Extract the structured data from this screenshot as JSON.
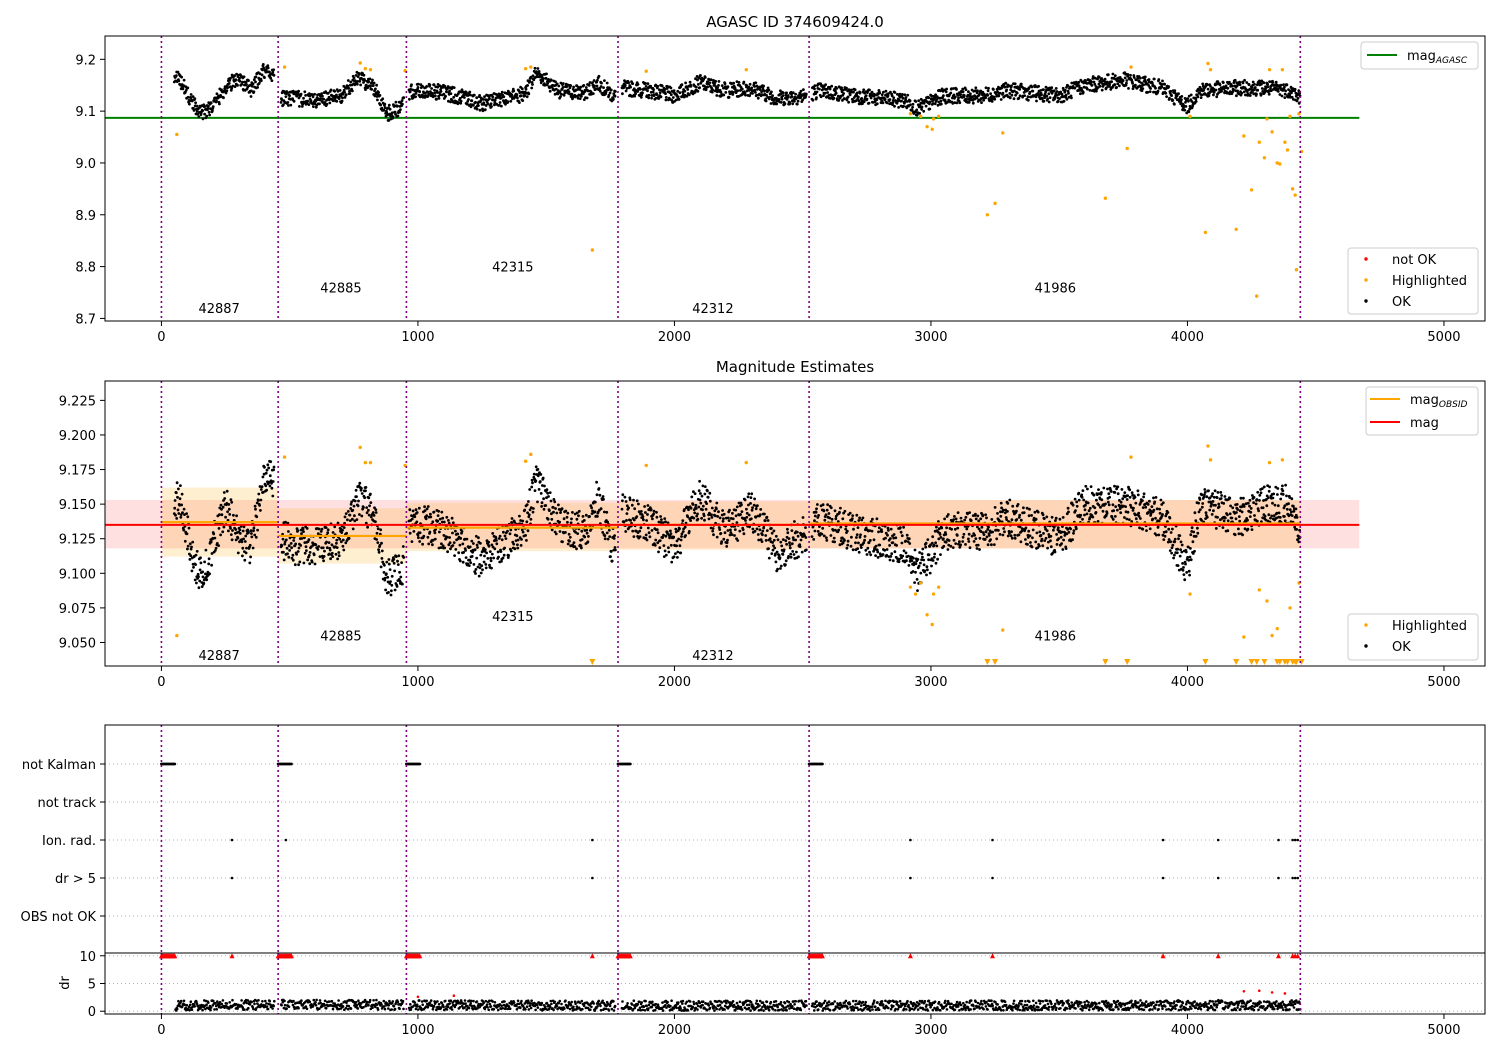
{
  "chart_data": [
    {
      "type": "scatter",
      "title": "AGASC ID 374609424.0",
      "xlim": [
        -220,
        5160
      ],
      "ylim": [
        8.695,
        9.245
      ],
      "xticks": [
        0,
        1000,
        2000,
        3000,
        4000,
        5000
      ],
      "xtick_labels": [
        "0",
        "1000",
        "2000",
        "3000",
        "4000",
        "5000"
      ],
      "yticks": [
        8.7,
        8.8,
        8.9,
        9.0,
        9.1,
        9.2
      ],
      "ytick_labels": [
        "8.7",
        "8.8",
        "8.9",
        "9.0",
        "9.1",
        "9.2"
      ],
      "obsid_boundaries": [
        0,
        455,
        955,
        1780,
        2525,
        4440
      ],
      "obsid_labels": [
        {
          "text": "42887",
          "x": 225,
          "y": 8.72
        },
        {
          "text": "42885",
          "x": 700,
          "y": 8.76
        },
        {
          "text": "42315",
          "x": 1370,
          "y": 8.8
        },
        {
          "text": "42312",
          "x": 2150,
          "y": 8.72
        },
        {
          "text": "41986",
          "x": 3485,
          "y": 8.76
        }
      ],
      "reference_lines": [
        {
          "name": "mag_AGASC",
          "y": 9.087,
          "x": [
            -220,
            4670
          ],
          "color": "#008000"
        }
      ],
      "legend_upper": {
        "position": "upper right",
        "entries": [
          {
            "label": "mag",
            "sub": "AGASC",
            "color": "#008000"
          }
        ]
      },
      "legend_lower": {
        "position": "lower right",
        "entries": [
          {
            "label": "not OK",
            "color": "#ff0000"
          },
          {
            "label": "Highlighted",
            "color": "#ffa500"
          },
          {
            "label": "OK",
            "color": "#000000"
          }
        ]
      },
      "ok_trend": [
        [
          50,
          9.17
        ],
        [
          80,
          9.155
        ],
        [
          120,
          9.115
        ],
        [
          160,
          9.098
        ],
        [
          200,
          9.11
        ],
        [
          250,
          9.145
        ],
        [
          300,
          9.165
        ],
        [
          350,
          9.14
        ],
        [
          400,
          9.18
        ],
        [
          440,
          9.17
        ],
        [
          460,
          9.125
        ],
        [
          520,
          9.125
        ],
        [
          600,
          9.12
        ],
        [
          700,
          9.13
        ],
        [
          770,
          9.165
        ],
        [
          830,
          9.145
        ],
        [
          880,
          9.095
        ],
        [
          940,
          9.11
        ],
        [
          960,
          9.135
        ],
        [
          1050,
          9.14
        ],
        [
          1150,
          9.13
        ],
        [
          1250,
          9.115
        ],
        [
          1350,
          9.125
        ],
        [
          1420,
          9.135
        ],
        [
          1460,
          9.175
        ],
        [
          1550,
          9.14
        ],
        [
          1650,
          9.135
        ],
        [
          1700,
          9.155
        ],
        [
          1775,
          9.125
        ],
        [
          1790,
          9.145
        ],
        [
          1900,
          9.14
        ],
        [
          2000,
          9.13
        ],
        [
          2100,
          9.155
        ],
        [
          2200,
          9.14
        ],
        [
          2300,
          9.145
        ],
        [
          2400,
          9.125
        ],
        [
          2520,
          9.13
        ],
        [
          2560,
          9.14
        ],
        [
          2700,
          9.13
        ],
        [
          2800,
          9.125
        ],
        [
          2900,
          9.12
        ],
        [
          2950,
          9.105
        ],
        [
          3050,
          9.13
        ],
        [
          3200,
          9.13
        ],
        [
          3300,
          9.14
        ],
        [
          3500,
          9.13
        ],
        [
          3600,
          9.15
        ],
        [
          3750,
          9.16
        ],
        [
          3900,
          9.145
        ],
        [
          4000,
          9.11
        ],
        [
          4050,
          9.14
        ],
        [
          4200,
          9.145
        ],
        [
          4300,
          9.145
        ],
        [
          4400,
          9.14
        ],
        [
          4440,
          9.125
        ]
      ],
      "highlighted_points": [
        [
          60,
          9.055
        ],
        [
          480,
          9.185
        ],
        [
          775,
          9.193
        ],
        [
          795,
          9.182
        ],
        [
          815,
          9.18
        ],
        [
          950,
          9.178
        ],
        [
          1420,
          9.182
        ],
        [
          1440,
          9.185
        ],
        [
          1680,
          8.832
        ],
        [
          1890,
          9.177
        ],
        [
          2280,
          9.18
        ],
        [
          2920,
          9.095
        ],
        [
          2960,
          9.09
        ],
        [
          2985,
          9.07
        ],
        [
          3005,
          9.065
        ],
        [
          3010,
          9.085
        ],
        [
          3030,
          9.09
        ],
        [
          3220,
          8.9
        ],
        [
          3250,
          8.922
        ],
        [
          3280,
          9.058
        ],
        [
          3680,
          8.932
        ],
        [
          3765,
          9.028
        ],
        [
          3780,
          9.185
        ],
        [
          4010,
          9.09
        ],
        [
          4070,
          8.866
        ],
        [
          4080,
          9.192
        ],
        [
          4090,
          9.18
        ],
        [
          4190,
          8.872
        ],
        [
          4220,
          9.052
        ],
        [
          4250,
          8.948
        ],
        [
          4270,
          8.743
        ],
        [
          4280,
          9.04
        ],
        [
          4300,
          9.01
        ],
        [
          4310,
          9.085
        ],
        [
          4320,
          9.18
        ],
        [
          4330,
          9.06
        ],
        [
          4350,
          9.0
        ],
        [
          4360,
          8.998
        ],
        [
          4370,
          9.18
        ],
        [
          4380,
          9.04
        ],
        [
          4390,
          9.025
        ],
        [
          4400,
          9.09
        ],
        [
          4410,
          8.95
        ],
        [
          4420,
          8.938
        ],
        [
          4425,
          8.794
        ],
        [
          4435,
          9.095
        ],
        [
          4445,
          9.022
        ]
      ],
      "not_ok_points": []
    },
    {
      "type": "scatter",
      "title": "Magnitude Estimates",
      "xlim": [
        -220,
        5160
      ],
      "ylim": [
        9.033,
        9.239
      ],
      "xticks": [
        0,
        1000,
        2000,
        3000,
        4000,
        5000
      ],
      "xtick_labels": [
        "0",
        "1000",
        "2000",
        "3000",
        "4000",
        "5000"
      ],
      "yticks": [
        9.05,
        9.075,
        9.1,
        9.125,
        9.15,
        9.175,
        9.2,
        9.225
      ],
      "ytick_labels": [
        "9.050",
        "9.075",
        "9.100",
        "9.125",
        "9.150",
        "9.175",
        "9.200",
        "9.225"
      ],
      "obsid_boundaries": [
        0,
        455,
        955,
        1780,
        2525,
        4440
      ],
      "obsid_labels": [
        {
          "text": "42887",
          "x": 225,
          "y": 9.041
        },
        {
          "text": "42885",
          "x": 700,
          "y": 9.055
        },
        {
          "text": "42315",
          "x": 1370,
          "y": 9.069
        },
        {
          "text": "42312",
          "x": 2150,
          "y": 9.041
        },
        {
          "text": "41986",
          "x": 3485,
          "y": 9.055
        }
      ],
      "mag": {
        "value": 9.135,
        "band": [
          9.118,
          9.153
        ],
        "x": [
          -100,
          4670
        ],
        "color": "#ff0000"
      },
      "mag_obsid": [
        {
          "x": [
            0,
            455
          ],
          "value": 9.137,
          "band": [
            9.112,
            9.162
          ]
        },
        {
          "x": [
            455,
            955
          ],
          "value": 9.127,
          "band": [
            9.107,
            9.147
          ]
        },
        {
          "x": [
            955,
            1780
          ],
          "value": 9.133,
          "band": [
            9.116,
            9.151
          ]
        },
        {
          "x": [
            1780,
            2525
          ],
          "value": 9.135,
          "band": [
            9.117,
            9.152
          ]
        },
        {
          "x": [
            2525,
            4440
          ],
          "value": 9.136,
          "band": [
            9.118,
            9.153
          ]
        }
      ],
      "legend_upper": {
        "position": "upper right",
        "entries": [
          {
            "label": "mag",
            "sub": "OBSID",
            "color": "#ffa500"
          },
          {
            "label": "mag",
            "sub": "",
            "color": "#ff0000"
          }
        ]
      },
      "legend_lower": {
        "position": "lower right",
        "entries": [
          {
            "label": "Highlighted",
            "color": "#ffa500"
          },
          {
            "label": "OK",
            "color": "#000000"
          }
        ]
      },
      "ok_trend": [
        [
          50,
          9.155
        ],
        [
          80,
          9.15
        ],
        [
          120,
          9.11
        ],
        [
          160,
          9.096
        ],
        [
          200,
          9.12
        ],
        [
          250,
          9.15
        ],
        [
          300,
          9.125
        ],
        [
          350,
          9.12
        ],
        [
          400,
          9.17
        ],
        [
          440,
          9.165
        ],
        [
          460,
          9.125
        ],
        [
          520,
          9.12
        ],
        [
          600,
          9.12
        ],
        [
          700,
          9.125
        ],
        [
          770,
          9.155
        ],
        [
          830,
          9.14
        ],
        [
          880,
          9.095
        ],
        [
          940,
          9.105
        ],
        [
          960,
          9.135
        ],
        [
          1050,
          9.135
        ],
        [
          1150,
          9.125
        ],
        [
          1250,
          9.11
        ],
        [
          1350,
          9.125
        ],
        [
          1420,
          9.135
        ],
        [
          1460,
          9.165
        ],
        [
          1550,
          9.135
        ],
        [
          1650,
          9.13
        ],
        [
          1700,
          9.155
        ],
        [
          1775,
          9.11
        ],
        [
          1790,
          9.145
        ],
        [
          1900,
          9.135
        ],
        [
          2000,
          9.12
        ],
        [
          2100,
          9.155
        ],
        [
          2200,
          9.13
        ],
        [
          2300,
          9.145
        ],
        [
          2400,
          9.115
        ],
        [
          2520,
          9.13
        ],
        [
          2560,
          9.14
        ],
        [
          2700,
          9.13
        ],
        [
          2800,
          9.125
        ],
        [
          2900,
          9.12
        ],
        [
          2950,
          9.1
        ],
        [
          3050,
          9.13
        ],
        [
          3200,
          9.13
        ],
        [
          3300,
          9.14
        ],
        [
          3500,
          9.125
        ],
        [
          3600,
          9.15
        ],
        [
          3750,
          9.15
        ],
        [
          3900,
          9.14
        ],
        [
          4000,
          9.105
        ],
        [
          4050,
          9.15
        ],
        [
          4200,
          9.14
        ],
        [
          4300,
          9.15
        ],
        [
          4400,
          9.15
        ],
        [
          4440,
          9.12
        ]
      ],
      "highlighted_points": [
        [
          60,
          9.055
        ],
        [
          480,
          9.184
        ],
        [
          775,
          9.191
        ],
        [
          795,
          9.18
        ],
        [
          815,
          9.18
        ],
        [
          950,
          9.178
        ],
        [
          1420,
          9.181
        ],
        [
          1440,
          9.186
        ],
        [
          1890,
          9.178
        ],
        [
          2280,
          9.18
        ],
        [
          2920,
          9.09
        ],
        [
          2940,
          9.085
        ],
        [
          2960,
          9.093
        ],
        [
          2985,
          9.07
        ],
        [
          3005,
          9.063
        ],
        [
          3010,
          9.085
        ],
        [
          3030,
          9.09
        ],
        [
          3280,
          9.059
        ],
        [
          3780,
          9.184
        ],
        [
          4010,
          9.085
        ],
        [
          4080,
          9.192
        ],
        [
          4090,
          9.182
        ],
        [
          4220,
          9.054
        ],
        [
          4280,
          9.088
        ],
        [
          4310,
          9.08
        ],
        [
          4320,
          9.18
        ],
        [
          4330,
          9.055
        ],
        [
          4350,
          9.06
        ],
        [
          4370,
          9.182
        ],
        [
          4400,
          9.075
        ],
        [
          4435,
          9.093
        ]
      ],
      "below_range_markers": [
        1680,
        3220,
        3250,
        3680,
        3765,
        4070,
        4190,
        4250,
        4270,
        4300,
        4350,
        4360,
        4380,
        4390,
        4410,
        4420,
        4425,
        4445
      ]
    },
    {
      "type": "scatter",
      "title": "",
      "xlim": [
        -220,
        5160
      ],
      "categories": [
        "not Kalman",
        "not track",
        "Ion. rad.",
        "dr > 5",
        "OBS not OK"
      ],
      "flag_points": {
        "not Kalman": [
          [
            0,
            55
          ],
          [
            455,
            510
          ],
          [
            955,
            1010
          ],
          [
            1780,
            1830
          ],
          [
            2525,
            2580
          ]
        ],
        "not track": [],
        "Ion. rad.": [
          275,
          485,
          1680,
          2920,
          3240,
          3905,
          4120,
          4355,
          4410,
          4420,
          4430
        ],
        "dr > 5": [
          275,
          1680,
          2920,
          3240,
          3905,
          4120,
          4355,
          4410,
          4420,
          4430
        ],
        "OBS not OK": []
      },
      "obsid_boundaries": [
        0,
        455,
        955,
        1780,
        2525,
        4440
      ]
    },
    {
      "type": "scatter",
      "title": "",
      "ylabel": "dr",
      "xlim": [
        -220,
        5160
      ],
      "ylim": [
        -0.5,
        10.5
      ],
      "xticks": [
        0,
        1000,
        2000,
        3000,
        4000,
        5000
      ],
      "xtick_labels": [
        "0",
        "1000",
        "2000",
        "3000",
        "4000",
        "5000"
      ],
      "yticks": [
        0,
        5,
        10
      ],
      "ytick_labels": [
        "0",
        "5",
        "10"
      ],
      "clipped_red_markers": [
        [
          0,
          55
        ],
        [
          455,
          510
        ],
        [
          955,
          1010
        ],
        [
          1780,
          1830
        ],
        [
          2525,
          2580
        ],
        275,
        1680,
        2920,
        3240,
        3905,
        4120,
        4355,
        4410,
        4420,
        4430
      ],
      "dr_trend": [
        [
          50,
          1.0
        ],
        [
          455,
          1.2
        ],
        [
          955,
          1.1
        ],
        [
          1780,
          1.0
        ],
        [
          2525,
          1.0
        ],
        [
          4440,
          1.1
        ]
      ],
      "red_points": [
        [
          1000,
          2.6
        ],
        [
          1140,
          2.8
        ],
        [
          4220,
          3.6
        ],
        [
          4280,
          3.7
        ],
        [
          4330,
          3.4
        ],
        [
          4380,
          3.2
        ]
      ],
      "obsid_boundaries": [
        0,
        455,
        955,
        1780,
        2525,
        4440
      ]
    }
  ]
}
